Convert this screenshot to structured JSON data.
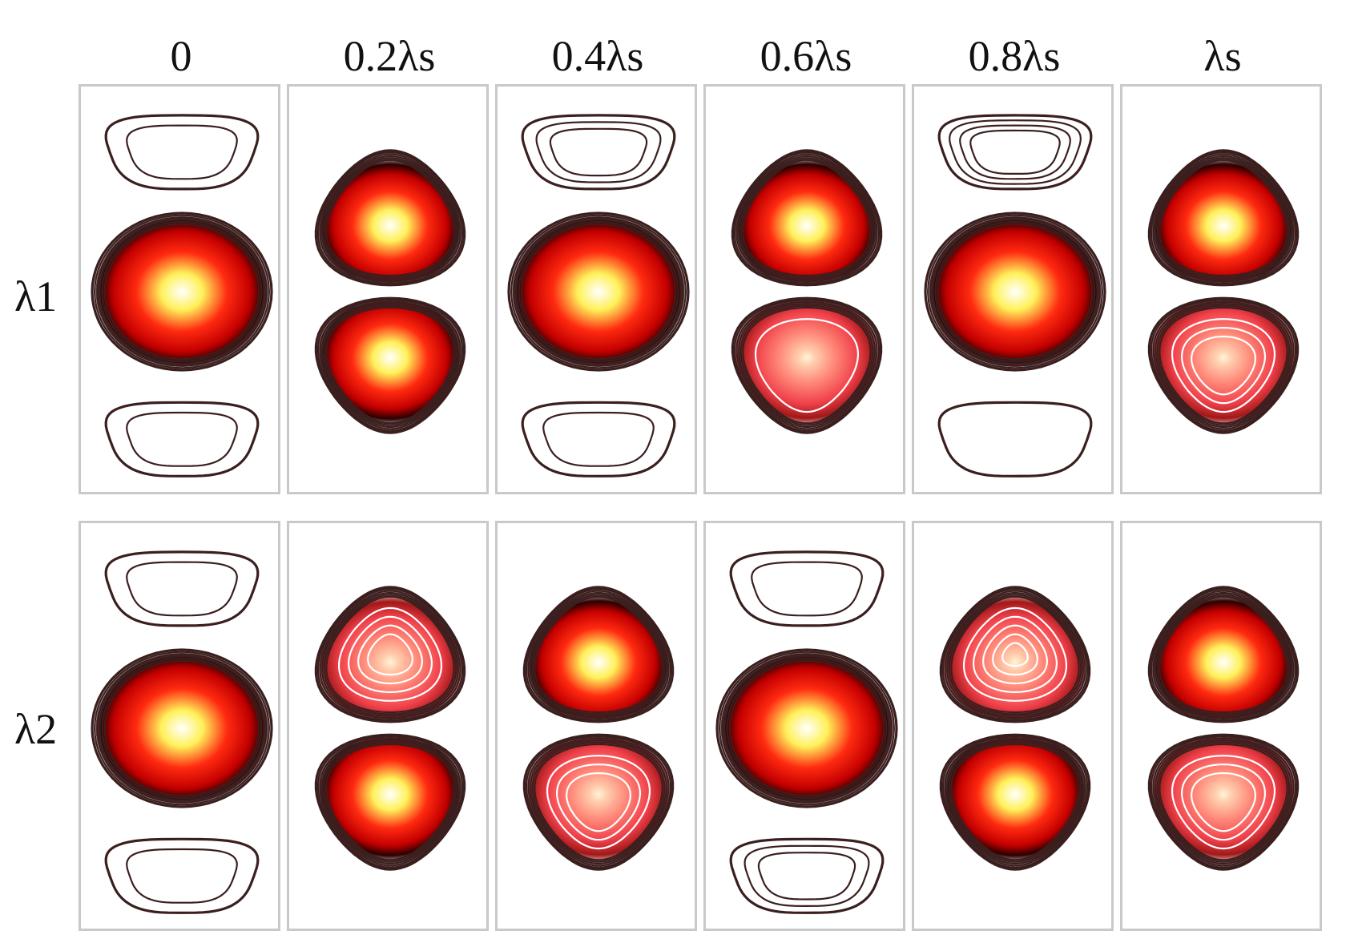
{
  "columns": [
    "0",
    "0.2λs",
    "0.4λs",
    "0.6λs",
    "0.8λs",
    "λs"
  ],
  "rows": [
    "λ1",
    "λ2"
  ],
  "colors": {
    "peak": "#ffffff",
    "high": "#fff15a",
    "mid": "#ff2a10",
    "edge": "#c40000",
    "shadow": "#2a0000",
    "contour": "#3b1f1f",
    "panel_border": "#c9c9c9"
  },
  "panels": [
    [
      {
        "lobes": [
          {
            "shape": "lens",
            "pos": "top",
            "filled": false,
            "rings": 2
          },
          {
            "shape": "round",
            "pos": "mid",
            "filled": true,
            "rings": 6
          },
          {
            "shape": "lens",
            "pos": "bottom",
            "filled": false,
            "rings": 2
          }
        ]
      },
      {
        "lobes": [
          {
            "shape": "tri-up",
            "pos": "upper",
            "filled": true,
            "rings": 6
          },
          {
            "shape": "tri-down",
            "pos": "lower",
            "filled": true,
            "rings": 6
          }
        ]
      },
      {
        "lobes": [
          {
            "shape": "lens",
            "pos": "top",
            "filled": false,
            "rings": 3
          },
          {
            "shape": "round",
            "pos": "mid",
            "filled": true,
            "rings": 6
          },
          {
            "shape": "lens",
            "pos": "bottom",
            "filled": false,
            "rings": 2
          }
        ]
      },
      {
        "lobes": [
          {
            "shape": "tri-up",
            "pos": "upper",
            "filled": true,
            "rings": 6
          },
          {
            "shape": "tri-down",
            "pos": "lower",
            "filled": true,
            "rings": 7,
            "faded": true
          }
        ]
      },
      {
        "lobes": [
          {
            "shape": "lens",
            "pos": "top",
            "filled": false,
            "rings": 4
          },
          {
            "shape": "round",
            "pos": "mid",
            "filled": true,
            "rings": 6
          },
          {
            "shape": "lens",
            "pos": "bottom",
            "filled": false,
            "rings": 1
          }
        ]
      },
      {
        "lobes": [
          {
            "shape": "tri-up",
            "pos": "upper",
            "filled": true,
            "rings": 6
          },
          {
            "shape": "tri-down",
            "pos": "lower",
            "filled": true,
            "rings": 9,
            "faded": true
          }
        ]
      }
    ],
    [
      {
        "lobes": [
          {
            "shape": "lens",
            "pos": "top",
            "filled": false,
            "rings": 2
          },
          {
            "shape": "round",
            "pos": "mid",
            "filled": true,
            "rings": 6
          },
          {
            "shape": "lens",
            "pos": "bottom",
            "filled": false,
            "rings": 2
          }
        ]
      },
      {
        "lobes": [
          {
            "shape": "tri-up",
            "pos": "upper",
            "filled": true,
            "rings": 10,
            "faded": true
          },
          {
            "shape": "tri-down",
            "pos": "lower",
            "filled": true,
            "rings": 6
          }
        ]
      },
      {
        "lobes": [
          {
            "shape": "tri-up",
            "pos": "upper",
            "filled": true,
            "rings": 6
          },
          {
            "shape": "tri-down",
            "pos": "lower",
            "filled": true,
            "rings": 9,
            "faded": true
          }
        ]
      },
      {
        "lobes": [
          {
            "shape": "lens",
            "pos": "top",
            "filled": false,
            "rings": 2
          },
          {
            "shape": "round",
            "pos": "mid",
            "filled": true,
            "rings": 6
          },
          {
            "shape": "lens",
            "pos": "bottom",
            "filled": false,
            "rings": 3
          }
        ]
      },
      {
        "lobes": [
          {
            "shape": "tri-up",
            "pos": "upper",
            "filled": true,
            "rings": 11,
            "faded": true
          },
          {
            "shape": "tri-down",
            "pos": "lower",
            "filled": true,
            "rings": 6
          }
        ]
      },
      {
        "lobes": [
          {
            "shape": "tri-up",
            "pos": "upper",
            "filled": true,
            "rings": 6
          },
          {
            "shape": "tri-down",
            "pos": "lower",
            "filled": true,
            "rings": 9,
            "faded": true
          }
        ]
      }
    ]
  ]
}
